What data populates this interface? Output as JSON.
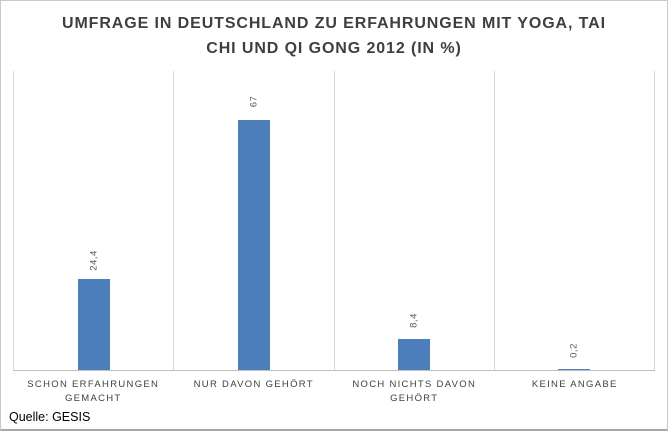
{
  "title": "UMFRAGE IN DEUTSCHLAND ZU ERFAHRUNGEN MIT YOGA, TAI CHI UND QI GONG 2012 (IN %)",
  "source": "Quelle: GESIS",
  "colors": {
    "bar": "#4d7ebc",
    "title_text": "#3f3f3f",
    "category_text": "#404040",
    "value_text": "#595959",
    "gridline": "#d9d9d9",
    "axis_line": "#bfbfbf",
    "frame_border": "#c9c9c9"
  },
  "chart_data": {
    "type": "bar",
    "title": "UMFRAGE IN DEUTSCHLAND ZU ERFAHRUNGEN MIT YOGA, TAI CHI UND QI GONG 2012 (IN %)",
    "categories": [
      "SCHON ERFAHRUNGEN GEMACHT",
      "NUR DAVON GEHÖRT",
      "NOCH NICHTS DAVON GEHÖRT",
      "KEINE ANGABE"
    ],
    "values": [
      24.4,
      67,
      8.4,
      0.2
    ],
    "value_labels": [
      "24,4",
      "67",
      "8,4",
      "0,2"
    ],
    "xlabel": "",
    "ylabel": "",
    "ylim": [
      0,
      80
    ],
    "grid": "vertical category separators",
    "legend_position": "none",
    "bar_color": "#4d7ebc"
  }
}
